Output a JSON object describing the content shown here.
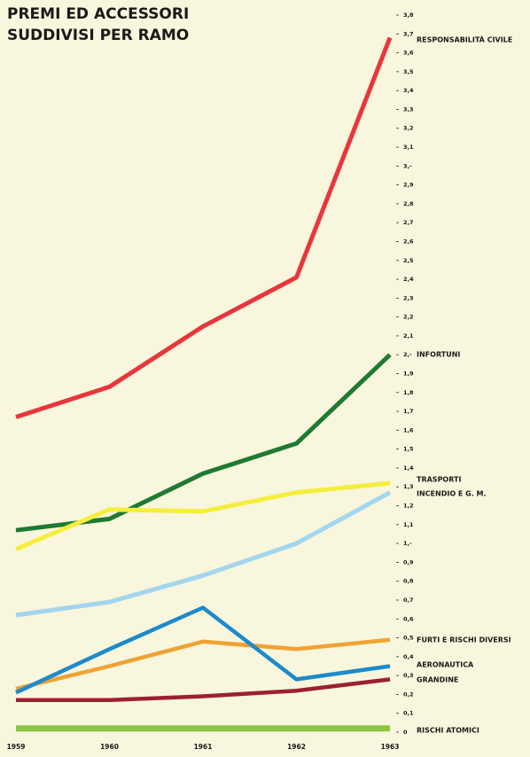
{
  "chart_data": {
    "type": "line",
    "title": [
      "PREMI ED ACCESSORI",
      "SUDDIVISI PER RAMO"
    ],
    "x": [
      "1959",
      "1960",
      "1961",
      "1962",
      "1963"
    ],
    "series": [
      {
        "name": "RESPONSABILITÀ CIVILE",
        "color": "#e8363c",
        "values": [
          1.67,
          1.83,
          2.15,
          2.41,
          3.68
        ]
      },
      {
        "name": "INFORTUNI",
        "color": "#1f7a32",
        "values": [
          1.07,
          1.13,
          1.37,
          1.53,
          2.0
        ]
      },
      {
        "name": "TRASPORTI",
        "color": "#f6ee3c",
        "values": [
          0.97,
          1.18,
          1.17,
          1.27,
          1.32
        ]
      },
      {
        "name": "INCENDIO E G. M.",
        "color": "#a3d6ee",
        "values": [
          0.62,
          0.69,
          0.83,
          1.0,
          1.27
        ]
      },
      {
        "name": "FURTI E RISCHI DIVERSI",
        "color": "#f0a232",
        "values": [
          0.23,
          0.35,
          0.48,
          0.44,
          0.49
        ]
      },
      {
        "name": "AERONAUTICA",
        "color": "#1c8acb",
        "values": [
          0.21,
          0.44,
          0.66,
          0.28,
          0.35
        ]
      },
      {
        "name": "GRANDINE",
        "color": "#9b2032",
        "values": [
          0.17,
          0.17,
          0.19,
          0.22,
          0.28
        ]
      },
      {
        "name": "RISCHI ATOMICI",
        "color": "#8fc641",
        "values": [
          0.02,
          0.02,
          0.02,
          0.02,
          0.02
        ]
      }
    ],
    "ylim": [
      0,
      3.8
    ],
    "yticks": [
      0,
      {
        "value": 0.1,
        "label": "0,1"
      },
      {
        "value": 0.2,
        "label": "0,2"
      },
      {
        "value": 0.3,
        "label": "0,3"
      },
      {
        "value": 0.4,
        "label": "0,4"
      },
      {
        "value": 0.5,
        "label": "0,5"
      },
      {
        "value": 0.6,
        "label": "0,6"
      },
      {
        "value": 0.7,
        "label": "0,7"
      },
      {
        "value": 0.8,
        "label": "0,8"
      },
      {
        "value": 0.9,
        "label": "0,9"
      },
      {
        "value": 1,
        "label": "1,-"
      },
      {
        "value": 1.1,
        "label": "1,1"
      },
      {
        "value": 1.2,
        "label": "1,2"
      },
      {
        "value": 1.3,
        "label": "1,3"
      },
      {
        "value": 1.4,
        "label": "1,4"
      },
      {
        "value": 1.5,
        "label": "1,5"
      },
      {
        "value": 1.6,
        "label": "1,6"
      },
      {
        "value": 1.7,
        "label": "1,7"
      },
      {
        "value": 1.8,
        "label": "1,8"
      },
      {
        "value": 1.9,
        "label": "1,9"
      },
      {
        "value": 2,
        "label": "2,-"
      },
      {
        "value": 2.1,
        "label": "2,1"
      },
      {
        "value": 2.2,
        "label": "2,2"
      },
      {
        "value": 2.3,
        "label": "2,3"
      },
      {
        "value": 2.4,
        "label": "2,4"
      },
      {
        "value": 2.5,
        "label": "2,5"
      },
      {
        "value": 2.6,
        "label": "2,6"
      },
      {
        "value": 2.7,
        "label": "2,7"
      },
      {
        "value": 2.8,
        "label": "2,8"
      },
      {
        "value": 2.9,
        "label": "2,9"
      },
      {
        "value": 3,
        "label": "3,-"
      },
      {
        "value": 3.1,
        "label": "3,1"
      },
      {
        "value": 3.2,
        "label": "3,2"
      },
      {
        "value": 3.3,
        "label": "3,3"
      },
      {
        "value": 3.4,
        "label": "3,4"
      },
      {
        "value": 3.5,
        "label": "3,5"
      },
      {
        "value": 3.6,
        "label": "3,6"
      },
      {
        "value": 3.7,
        "label": "3,7"
      },
      {
        "value": 3.8,
        "label": "3,8"
      }
    ],
    "grid": false
  }
}
